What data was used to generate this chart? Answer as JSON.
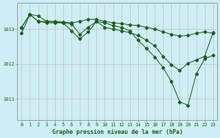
{
  "background_color": "#ceeef5",
  "grid_color": "#b0d8e0",
  "line_color": "#1a5c1a",
  "title": "Graphe pression niveau de la mer (hPa)",
  "ylabel_ticks": [
    1011,
    1012,
    1013
  ],
  "x_ticks": [
    0,
    1,
    2,
    3,
    4,
    5,
    6,
    7,
    8,
    9,
    10,
    11,
    12,
    13,
    14,
    15,
    16,
    17,
    18,
    19,
    20,
    21,
    22,
    23
  ],
  "xlim": [
    -0.5,
    23.5
  ],
  "ylim": [
    1010.4,
    1013.75
  ],
  "series": [
    [
      1013.05,
      1013.42,
      1013.38,
      1013.22,
      1013.22,
      1013.2,
      1013.18,
      1013.22,
      1013.28,
      1013.28,
      1013.22,
      1013.18,
      1013.16,
      1013.12,
      1013.1,
      1013.05,
      1013.0,
      1012.92,
      1012.85,
      1012.8,
      1012.82,
      1012.88,
      1012.92,
      1012.88
    ],
    [
      1013.05,
      1013.42,
      1013.22,
      1013.22,
      1013.2,
      1013.18,
      1012.95,
      1012.72,
      1012.92,
      1013.22,
      1013.05,
      1013.0,
      1012.95,
      1012.9,
      1012.82,
      1012.68,
      1012.52,
      1012.22,
      1011.98,
      1011.82,
      1012.02,
      1012.12,
      1012.22,
      1012.9
    ],
    [
      1012.88,
      1013.42,
      1013.22,
      1013.18,
      1013.18,
      1013.18,
      1013.15,
      1012.85,
      1013.05,
      1013.22,
      1013.18,
      1013.1,
      1013.05,
      1012.95,
      1012.68,
      1012.45,
      1012.2,
      1011.9,
      1011.5,
      1010.92,
      1010.82,
      1011.72,
      1012.15,
      1012.25
    ]
  ]
}
